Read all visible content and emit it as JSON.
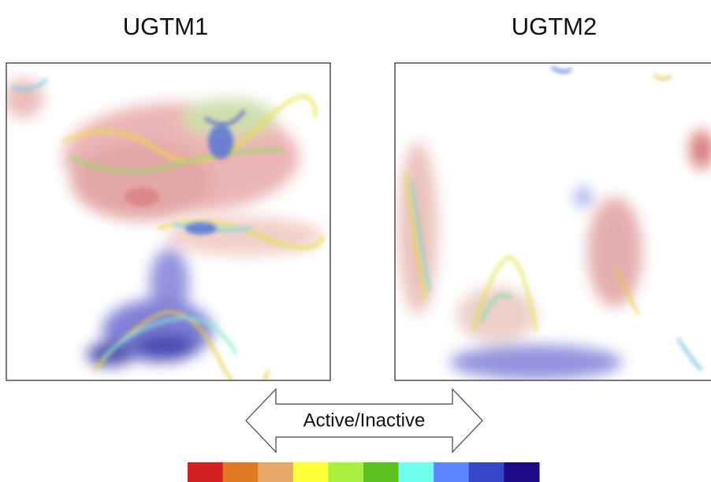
{
  "panels": [
    {
      "title": "UGTM1"
    },
    {
      "title": "UGTM2"
    }
  ],
  "arrow": {
    "label": "Active/Inactive"
  },
  "colorbar": {
    "colors": [
      "#d42020",
      "#e07a22",
      "#e8a868",
      "#ffff3a",
      "#a8f040",
      "#5cc020",
      "#70ffee",
      "#5b86ff",
      "#3546c8",
      "#1c0a86"
    ]
  }
}
